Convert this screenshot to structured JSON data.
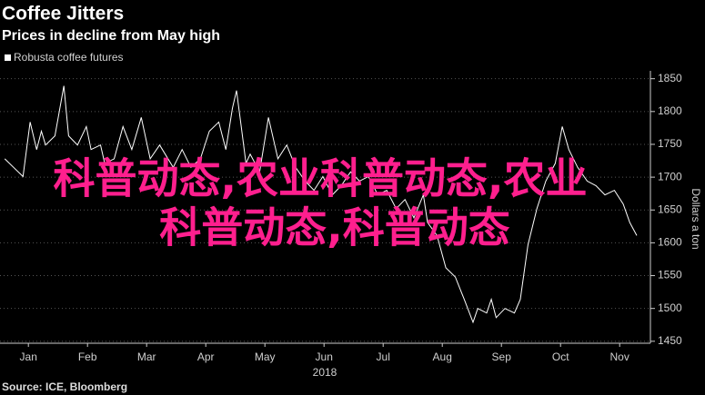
{
  "chart_data": {
    "type": "line",
    "title": "Coffee Jitters",
    "subtitle": "Prices in decline from May high",
    "ylabel": "Dollars a ton",
    "xlabel": "2018",
    "source": "Source: ICE, Bloomberg",
    "annotations": [
      "科普动态,农业科普动态,农业",
      "科普动态,科普动态"
    ],
    "grid": true,
    "xlim": [
      0.52,
      11.52
    ],
    "xticks": [
      {
        "value": 1,
        "label": "Jan"
      },
      {
        "value": 2,
        "label": "Feb"
      },
      {
        "value": 3,
        "label": "Mar"
      },
      {
        "value": 4,
        "label": "Apr"
      },
      {
        "value": 5,
        "label": "May"
      },
      {
        "value": 6,
        "label": "Jun"
      },
      {
        "value": 7,
        "label": "Jul"
      },
      {
        "value": 8,
        "label": "Aug"
      },
      {
        "value": 9,
        "label": "Sep"
      },
      {
        "value": 10,
        "label": "Oct"
      },
      {
        "value": 11,
        "label": "Nov"
      }
    ],
    "ylim": [
      1447,
      1862
    ],
    "yticks": [
      1450,
      1500,
      1550,
      1600,
      1650,
      1700,
      1750,
      1800,
      1850
    ],
    "series": [
      {
        "name": "Robusta coffee futures",
        "color": "#ffffff",
        "x": [
          0.6,
          0.75,
          0.91,
          1.03,
          1.14,
          1.22,
          1.29,
          1.45,
          1.6,
          1.68,
          1.83,
          1.98,
          2.06,
          2.22,
          2.29,
          2.45,
          2.6,
          2.75,
          2.91,
          3.06,
          3.22,
          3.45,
          3.6,
          3.75,
          3.91,
          4.06,
          4.22,
          4.34,
          4.45,
          4.52,
          4.6,
          4.68,
          4.75,
          4.91,
          5.06,
          5.22,
          5.37,
          5.52,
          5.68,
          5.83,
          5.98,
          6.14,
          6.29,
          6.45,
          6.6,
          6.75,
          6.91,
          7.06,
          7.22,
          7.37,
          7.52,
          7.68,
          7.75,
          7.91,
          8.06,
          8.22,
          8.37,
          8.52,
          8.6,
          8.75,
          8.83,
          8.91,
          9.06,
          9.22,
          9.32,
          9.45,
          9.6,
          9.75,
          9.91,
          10.03,
          10.14,
          10.29,
          10.45,
          10.6,
          10.75,
          10.91,
          11.06,
          11.17,
          11.29
        ],
        "values": [
          1728,
          1715,
          1701,
          1784,
          1742,
          1770,
          1749,
          1763,
          1839,
          1763,
          1749,
          1777,
          1742,
          1749,
          1721,
          1728,
          1777,
          1742,
          1791,
          1728,
          1749,
          1715,
          1742,
          1715,
          1728,
          1770,
          1784,
          1742,
          1805,
          1832,
          1777,
          1721,
          1735,
          1708,
          1791,
          1728,
          1749,
          1715,
          1694,
          1680,
          1701,
          1673,
          1687,
          1708,
          1694,
          1701,
          1673,
          1680,
          1652,
          1666,
          1638,
          1673,
          1631,
          1611,
          1562,
          1548,
          1514,
          1479,
          1500,
          1493,
          1514,
          1486,
          1500,
          1493,
          1514,
          1597,
          1652,
          1694,
          1721,
          1777,
          1742,
          1715,
          1694,
          1687,
          1673,
          1680,
          1659,
          1631,
          1611
        ]
      }
    ]
  }
}
